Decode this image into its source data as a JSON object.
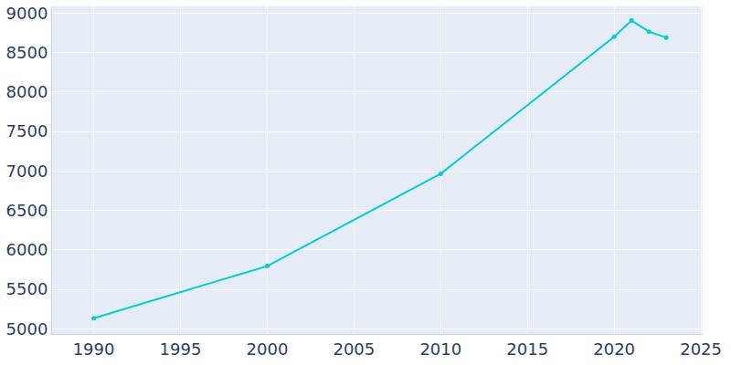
{
  "chart_data": {
    "type": "line",
    "x": [
      1990,
      2000,
      2010,
      2020,
      2021,
      2022,
      2023
    ],
    "values": [
      5135,
      5795,
      6965,
      8700,
      8905,
      8765,
      8690
    ],
    "color": "#00ced1",
    "marker": "circle",
    "xlim": [
      1987.6,
      2025.1
    ],
    "xticks": [
      1990,
      1995,
      2000,
      2005,
      2010,
      2015,
      2020,
      2025
    ],
    "ylim": [
      4935,
      9085
    ],
    "yticks": [
      5000,
      5500,
      6000,
      6500,
      7000,
      7500,
      8000,
      8500,
      9000
    ],
    "grid": true
  }
}
